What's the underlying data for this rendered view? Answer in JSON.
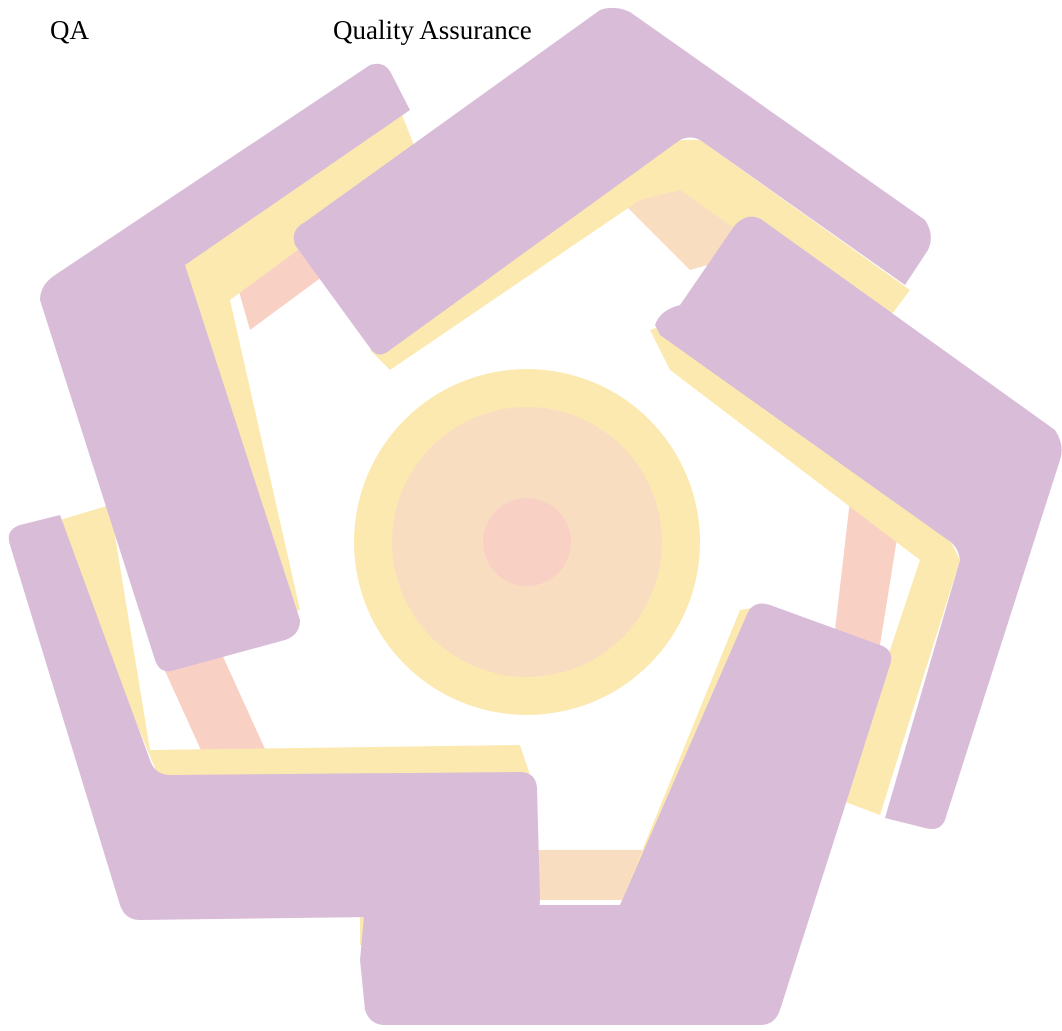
{
  "abbreviation_list": {
    "rows": [
      {
        "term": "QA",
        "definition": "Quality Assurance"
      }
    ]
  },
  "watermark": {
    "description_icon": "pentagon-star-logo-icon",
    "colors": {
      "purple": "#d8bcd8",
      "purple_dark": "#d2bcdc",
      "yellow": "#fbe9b0",
      "peach": "#f9ddc0",
      "salmon": "#f8d0c4"
    }
  }
}
